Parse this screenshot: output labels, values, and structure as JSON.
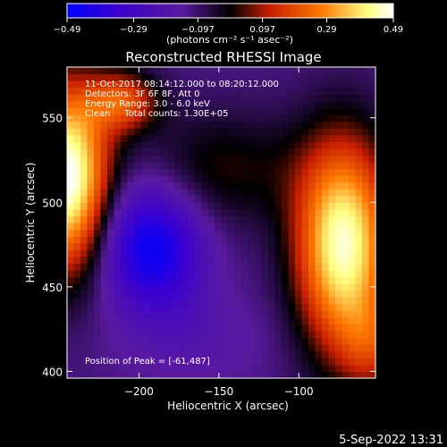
{
  "chart_data": {
    "type": "heatmap",
    "title": "Reconstructed RHESSI Image",
    "xlabel": "Heliocentric X (arcsec)",
    "ylabel": "Heliocentric Y (arcsec)",
    "xlim": [
      -245,
      -52
    ],
    "ylim": [
      396,
      580
    ],
    "x_ticks": [
      {
        "value": -200,
        "label": "−200"
      },
      {
        "value": -150,
        "label": "−150"
      },
      {
        "value": -100,
        "label": "−100"
      }
    ],
    "y_ticks": [
      {
        "value": 400,
        "label": "400"
      },
      {
        "value": 450,
        "label": "450"
      },
      {
        "value": 500,
        "label": "500"
      },
      {
        "value": 550,
        "label": "550"
      }
    ],
    "colorbar": {
      "min": -0.49,
      "max": 0.49,
      "tick_values": [
        -0.49,
        -0.29,
        -0.097,
        0.097,
        0.29,
        0.49
      ],
      "tick_labels": [
        "−0.49",
        "−0.29",
        "−0.097",
        "0.097",
        "0.29",
        "0.49"
      ],
      "units_label": "(photons cm⁻² s⁻¹ asec⁻²)",
      "colors": [
        "#0000ff",
        "#3a00d0",
        "#5a1aa0",
        "#000000",
        "#c81e00",
        "#ff7800",
        "#ffff80",
        "#ffffff"
      ]
    },
    "annotations": [
      "11-Oct-2017 08:14:12.000 to 08:20:12.000",
      "Detectors: 3F 6F 8F, Att 0",
      "Energy Range: 3.0 - 6.0 keV",
      "Clean     Total counts: 1.30E+05"
    ],
    "peak_label": "Position of Peak = [-61,487]",
    "blobs": [
      {
        "x": -72,
        "y": 475,
        "sx": 30,
        "sy": 62,
        "v": 0.58
      },
      {
        "x": -52,
        "y": 415,
        "sx": 22,
        "sy": 28,
        "v": 0.18
      },
      {
        "x": -245,
        "y": 515,
        "sx": 26,
        "sy": 55,
        "v": 0.62
      },
      {
        "x": -210,
        "y": 560,
        "sx": 22,
        "sy": 18,
        "v": 0.3
      },
      {
        "x": -198,
        "y": 475,
        "sx": 28,
        "sy": 38,
        "v": -0.3
      },
      {
        "x": -175,
        "y": 470,
        "sx": 24,
        "sy": 40,
        "v": -0.12
      },
      {
        "x": -150,
        "y": 520,
        "sx": 55,
        "sy": 35,
        "v": 0.14
      },
      {
        "x": -160,
        "y": 420,
        "sx": 45,
        "sy": 25,
        "v": -0.05
      }
    ],
    "background_value": -0.12
  },
  "footer": {
    "date": "5-Sep-2022 13:31"
  }
}
